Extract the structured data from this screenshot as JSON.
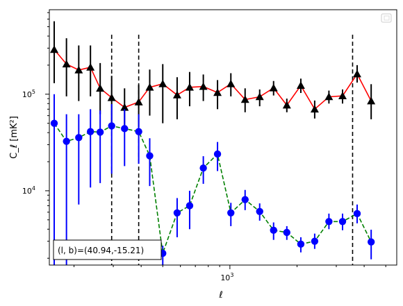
{
  "chart_data": {
    "type": "scatter",
    "x_scale": "log",
    "y_scale": "log",
    "xlim": [
      155,
      5600
    ],
    "ylim": [
      1700,
      750000
    ],
    "xlabel": "ℓ",
    "ylabel": "C_ℓ  [mK²]",
    "x_major_tick_labels": [
      {
        "value": 1000,
        "base": "10",
        "exp": "3"
      }
    ],
    "y_major_tick_labels": [
      {
        "value": 10000,
        "base": "10",
        "exp": "4"
      },
      {
        "value": 100000,
        "base": "10",
        "exp": "5"
      }
    ],
    "annotation": "(l, b)=(40.94,-15.21)",
    "vertical_lines": [
      295,
      390,
      3550
    ],
    "legend_placement": "top-right",
    "grid": false,
    "series": [
      {
        "color": "#ff0000",
        "marker": "triangle",
        "marker_color": "#000000",
        "linestyle": "solid",
        "points": [
          {
            "x": 163,
            "y": 290000,
            "lo": 130000,
            "hi": 570000
          },
          {
            "x": 185,
            "y": 205000,
            "lo": 95000,
            "hi": 380000
          },
          {
            "x": 210,
            "y": 178000,
            "lo": 85000,
            "hi": 320000
          },
          {
            "x": 237,
            "y": 190000,
            "lo": 95000,
            "hi": 320000
          },
          {
            "x": 262,
            "y": 115000,
            "lo": 62000,
            "hi": 210000
          },
          {
            "x": 295,
            "y": 92000,
            "lo": 50000,
            "hi": 155000
          },
          {
            "x": 337,
            "y": 73000,
            "lo": 48000,
            "hi": 115000
          },
          {
            "x": 390,
            "y": 83000,
            "lo": 46000,
            "hi": 125000
          },
          {
            "x": 437,
            "y": 118000,
            "lo": 60000,
            "hi": 180000
          },
          {
            "x": 500,
            "y": 128000,
            "lo": 50000,
            "hi": 205000
          },
          {
            "x": 580,
            "y": 98000,
            "lo": 55000,
            "hi": 150000
          },
          {
            "x": 660,
            "y": 118000,
            "lo": 75000,
            "hi": 170000
          },
          {
            "x": 760,
            "y": 120000,
            "lo": 85000,
            "hi": 160000
          },
          {
            "x": 880,
            "y": 104000,
            "lo": 70000,
            "hi": 140000
          },
          {
            "x": 1010,
            "y": 128000,
            "lo": 95000,
            "hi": 165000
          },
          {
            "x": 1170,
            "y": 88000,
            "lo": 65000,
            "hi": 115000
          },
          {
            "x": 1360,
            "y": 94000,
            "lo": 75000,
            "hi": 112000
          },
          {
            "x": 1570,
            "y": 116000,
            "lo": 97000,
            "hi": 137000
          },
          {
            "x": 1800,
            "y": 77000,
            "lo": 65000,
            "hi": 90000
          },
          {
            "x": 2080,
            "y": 123000,
            "lo": 103000,
            "hi": 145000
          },
          {
            "x": 2400,
            "y": 70000,
            "lo": 56000,
            "hi": 86000
          },
          {
            "x": 2780,
            "y": 94000,
            "lo": 80000,
            "hi": 109000
          },
          {
            "x": 3200,
            "y": 96000,
            "lo": 80000,
            "hi": 112000
          },
          {
            "x": 3720,
            "y": 162000,
            "lo": 132000,
            "hi": 200000
          },
          {
            "x": 4300,
            "y": 85000,
            "lo": 55000,
            "hi": 127000
          }
        ]
      },
      {
        "color": "#008000",
        "marker": "circle",
        "marker_color": "#0000ff",
        "linestyle": "dashed",
        "points": [
          {
            "x": 163,
            "y": 50000,
            "lo": 1700,
            "hi": 100000
          },
          {
            "x": 185,
            "y": 32500,
            "lo": 1700,
            "hi": 62000
          },
          {
            "x": 210,
            "y": 35500,
            "lo": 7200,
            "hi": 62000
          },
          {
            "x": 237,
            "y": 41000,
            "lo": 10800,
            "hi": 70000
          },
          {
            "x": 262,
            "y": 40500,
            "lo": 12000,
            "hi": 68000
          },
          {
            "x": 295,
            "y": 47000,
            "lo": 15000,
            "hi": 79000
          },
          {
            "x": 337,
            "y": 44000,
            "lo": 18000,
            "hi": 70000
          },
          {
            "x": 390,
            "y": 41000,
            "lo": 19000,
            "hi": 62000
          },
          {
            "x": 437,
            "y": 23000,
            "lo": 11200,
            "hi": 35000
          },
          {
            "x": 500,
            "y": 2250,
            "lo": 1700,
            "hi": 2700
          },
          {
            "x": 580,
            "y": 5900,
            "lo": 3300,
            "hi": 8400
          },
          {
            "x": 660,
            "y": 7000,
            "lo": 4000,
            "hi": 10000
          },
          {
            "x": 760,
            "y": 17200,
            "lo": 11800,
            "hi": 22800
          },
          {
            "x": 880,
            "y": 24000,
            "lo": 16000,
            "hi": 32000
          },
          {
            "x": 1010,
            "y": 5900,
            "lo": 4300,
            "hi": 7500
          },
          {
            "x": 1170,
            "y": 8100,
            "lo": 6300,
            "hi": 10200
          },
          {
            "x": 1360,
            "y": 6100,
            "lo": 4900,
            "hi": 7400
          },
          {
            "x": 1570,
            "y": 3900,
            "lo": 3100,
            "hi": 4700
          },
          {
            "x": 1800,
            "y": 3700,
            "lo": 3100,
            "hi": 4300
          },
          {
            "x": 2080,
            "y": 2800,
            "lo": 2300,
            "hi": 3300
          },
          {
            "x": 2400,
            "y": 3000,
            "lo": 2500,
            "hi": 3600
          },
          {
            "x": 2780,
            "y": 4800,
            "lo": 4000,
            "hi": 5800
          },
          {
            "x": 3200,
            "y": 4800,
            "lo": 3900,
            "hi": 5800
          },
          {
            "x": 3720,
            "y": 5800,
            "lo": 4600,
            "hi": 7200
          },
          {
            "x": 4300,
            "y": 2950,
            "lo": 1950,
            "hi": 3950
          }
        ]
      }
    ]
  }
}
